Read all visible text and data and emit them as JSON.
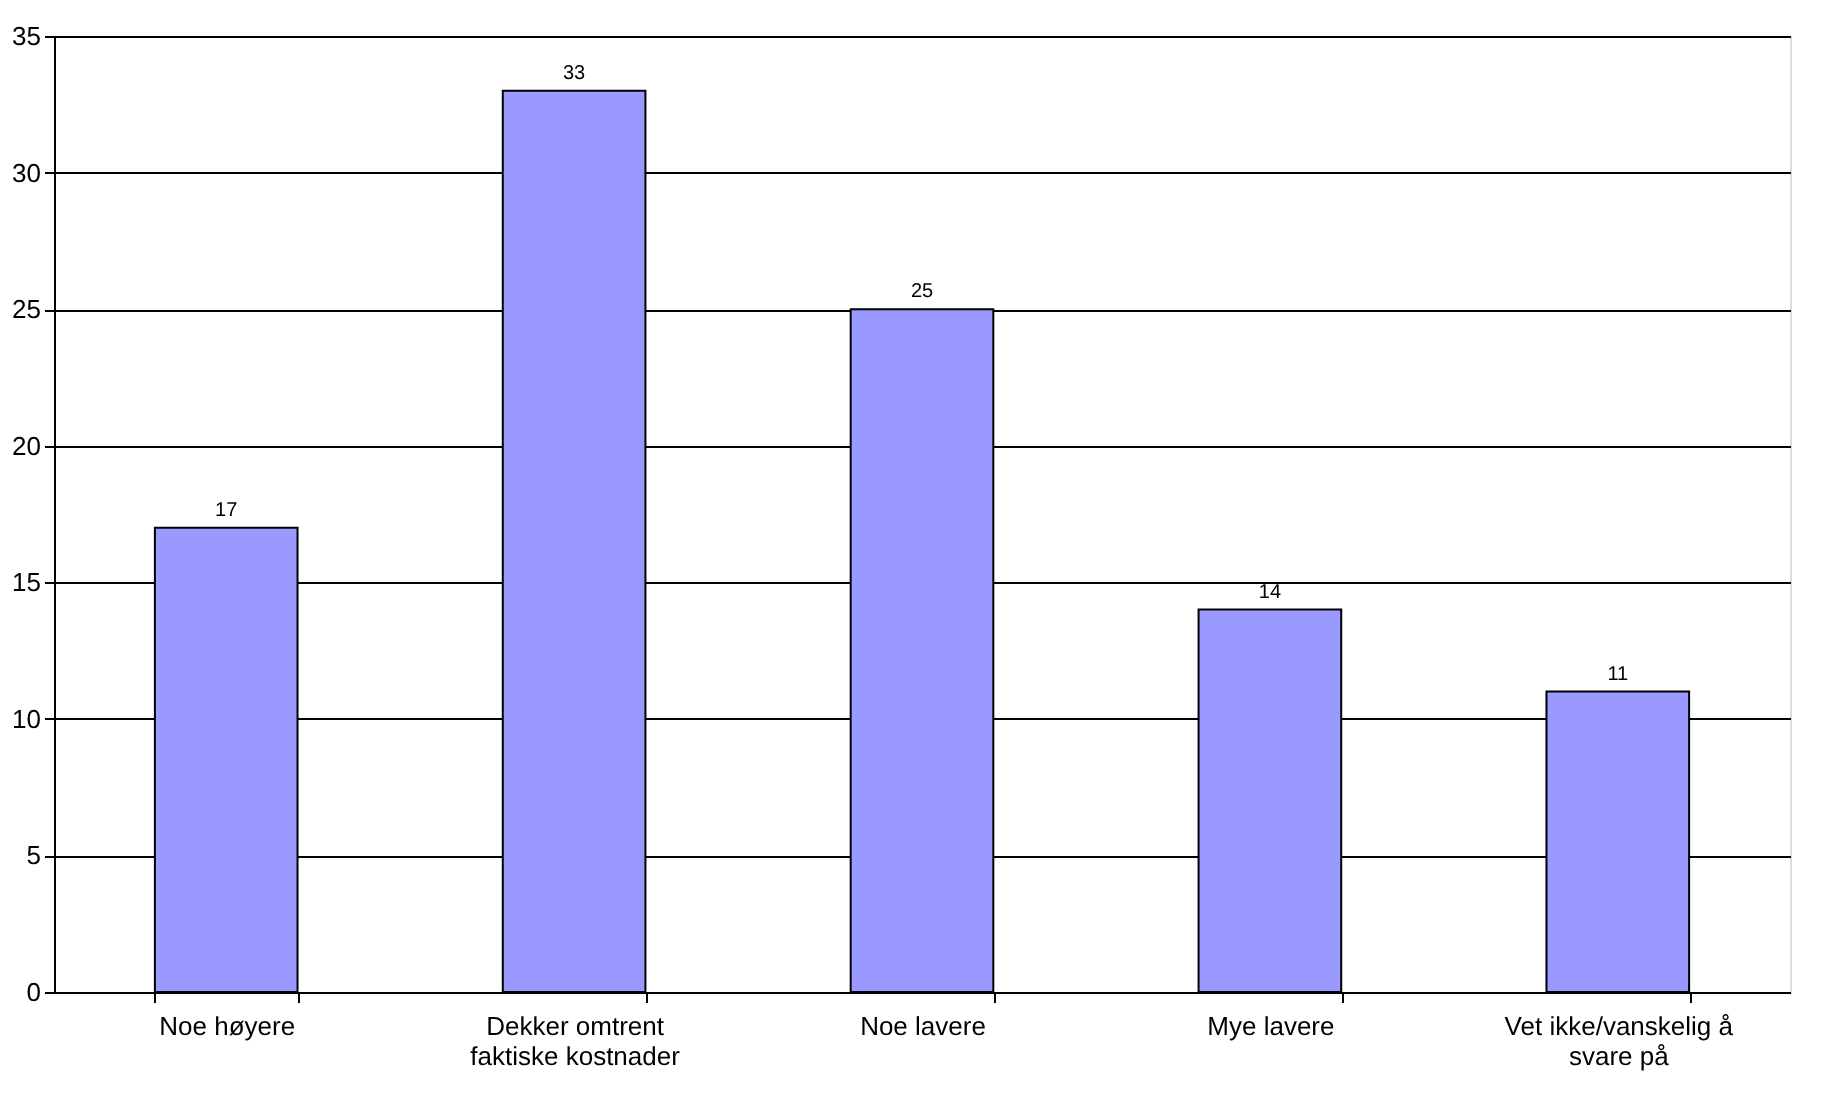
{
  "chart_data": {
    "type": "bar",
    "categories": [
      "Noe høyere",
      "Dekker omtrent faktiske kostnader",
      "Noe lavere",
      "Mye lavere",
      "Vet ikke/vanskelig å svare på"
    ],
    "values": [
      17,
      33,
      25,
      14,
      11
    ],
    "color": "#9999ff",
    "ylim": [
      0,
      35
    ],
    "yticks": [
      0,
      5,
      10,
      15,
      20,
      25,
      30,
      35
    ],
    "grid": "y",
    "data_labels": true
  }
}
